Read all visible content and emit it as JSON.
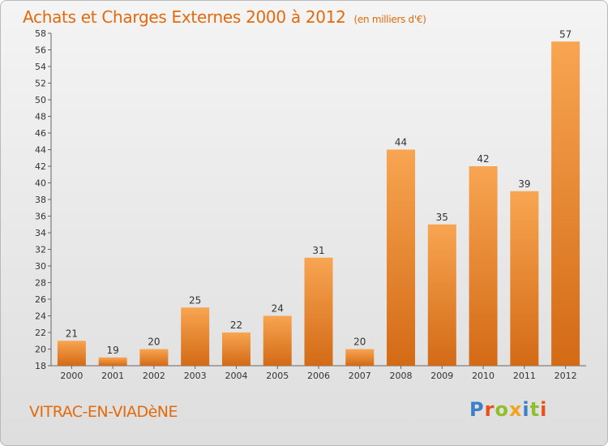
{
  "title": "Achats et Charges Externes 2000 à 2012",
  "unit": "(en milliers d'€)",
  "place": "VITRAC-EN-VIADèNE",
  "logo": {
    "text": "Proxiti",
    "letter_colors": [
      "#3d7fc8",
      "#e8511c",
      "#8fbf2a",
      "#f5a21c",
      "#3d7fc8",
      "#8fbf2a",
      "#e8511c"
    ]
  },
  "colors": {
    "text_accent": "#e36a0c",
    "bar_light": "#f8a551",
    "bar_dark": "#d36a16"
  },
  "chart_data": {
    "type": "bar",
    "categories": [
      "2000",
      "2001",
      "2002",
      "2003",
      "2004",
      "2005",
      "2006",
      "2007",
      "2008",
      "2009",
      "2010",
      "2011",
      "2012"
    ],
    "values": [
      21,
      19,
      20,
      25,
      22,
      24,
      31,
      20,
      44,
      35,
      42,
      39,
      57
    ],
    "ylim": [
      18,
      58
    ],
    "yticks": [
      18,
      20,
      22,
      24,
      26,
      28,
      30,
      32,
      34,
      36,
      38,
      40,
      42,
      44,
      46,
      48,
      50,
      52,
      54,
      56,
      58
    ],
    "grid": false,
    "legend": "none"
  }
}
